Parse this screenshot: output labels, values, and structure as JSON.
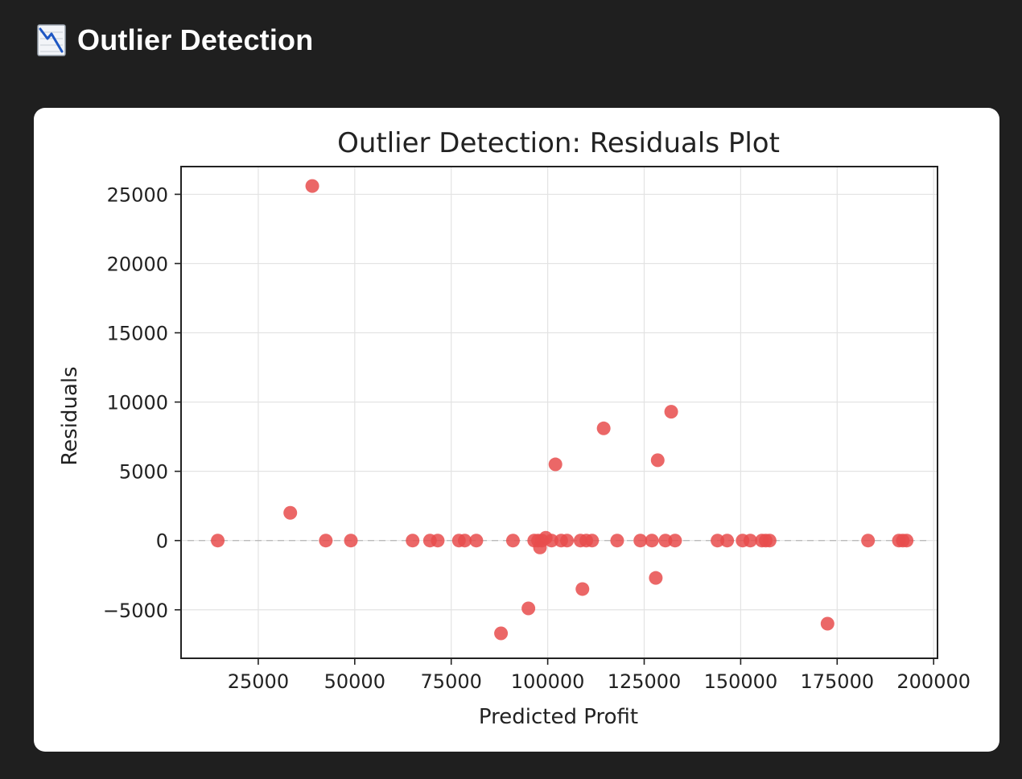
{
  "header": {
    "title": "Outlier Detection",
    "icon": "chart-decreasing-icon"
  },
  "colors": {
    "page_background": "#1f1f1f",
    "card_background": "#ffffff",
    "point_color": "#e74c4c",
    "grid_color": "#e3e3e3"
  },
  "chart_data": {
    "type": "scatter",
    "title": "Outlier Detection: Residuals Plot",
    "xlabel": "Predicted Profit",
    "ylabel": "Residuals",
    "xlim": [
      5000,
      201000
    ],
    "ylim": [
      -8500,
      27000
    ],
    "xticks": [
      25000,
      50000,
      75000,
      100000,
      125000,
      150000,
      175000,
      200000
    ],
    "yticks": [
      -5000,
      0,
      5000,
      10000,
      15000,
      20000,
      25000
    ],
    "grid": true,
    "reference_line": {
      "y": 0,
      "style": "dashed"
    },
    "series": [
      {
        "points": [
          [
            14500,
            0
          ],
          [
            33300,
            2000
          ],
          [
            39000,
            25600
          ],
          [
            42500,
            0
          ],
          [
            49000,
            0
          ],
          [
            65000,
            0
          ],
          [
            69500,
            0
          ],
          [
            71500,
            0
          ],
          [
            77000,
            0
          ],
          [
            78500,
            0
          ],
          [
            81500,
            0
          ],
          [
            87900,
            -6700
          ],
          [
            91000,
            0
          ],
          [
            95000,
            -4900
          ],
          [
            96500,
            0
          ],
          [
            97500,
            0
          ],
          [
            98000,
            -500
          ],
          [
            98500,
            0
          ],
          [
            99500,
            200
          ],
          [
            101000,
            0
          ],
          [
            102000,
            5500
          ],
          [
            103500,
            0
          ],
          [
            105000,
            0
          ],
          [
            108500,
            0
          ],
          [
            109000,
            -3500
          ],
          [
            110000,
            0
          ],
          [
            111500,
            0
          ],
          [
            114500,
            8100
          ],
          [
            118000,
            0
          ],
          [
            124000,
            0
          ],
          [
            127000,
            0
          ],
          [
            128000,
            -2700
          ],
          [
            128500,
            5800
          ],
          [
            130500,
            0
          ],
          [
            132000,
            9300
          ],
          [
            133000,
            0
          ],
          [
            144000,
            0
          ],
          [
            146500,
            0
          ],
          [
            150500,
            0
          ],
          [
            152500,
            0
          ],
          [
            155500,
            0
          ],
          [
            156500,
            0
          ],
          [
            157500,
            0
          ],
          [
            172500,
            -6000
          ],
          [
            183000,
            0
          ],
          [
            191000,
            0
          ],
          [
            192000,
            0
          ],
          [
            193000,
            0
          ]
        ]
      }
    ]
  }
}
